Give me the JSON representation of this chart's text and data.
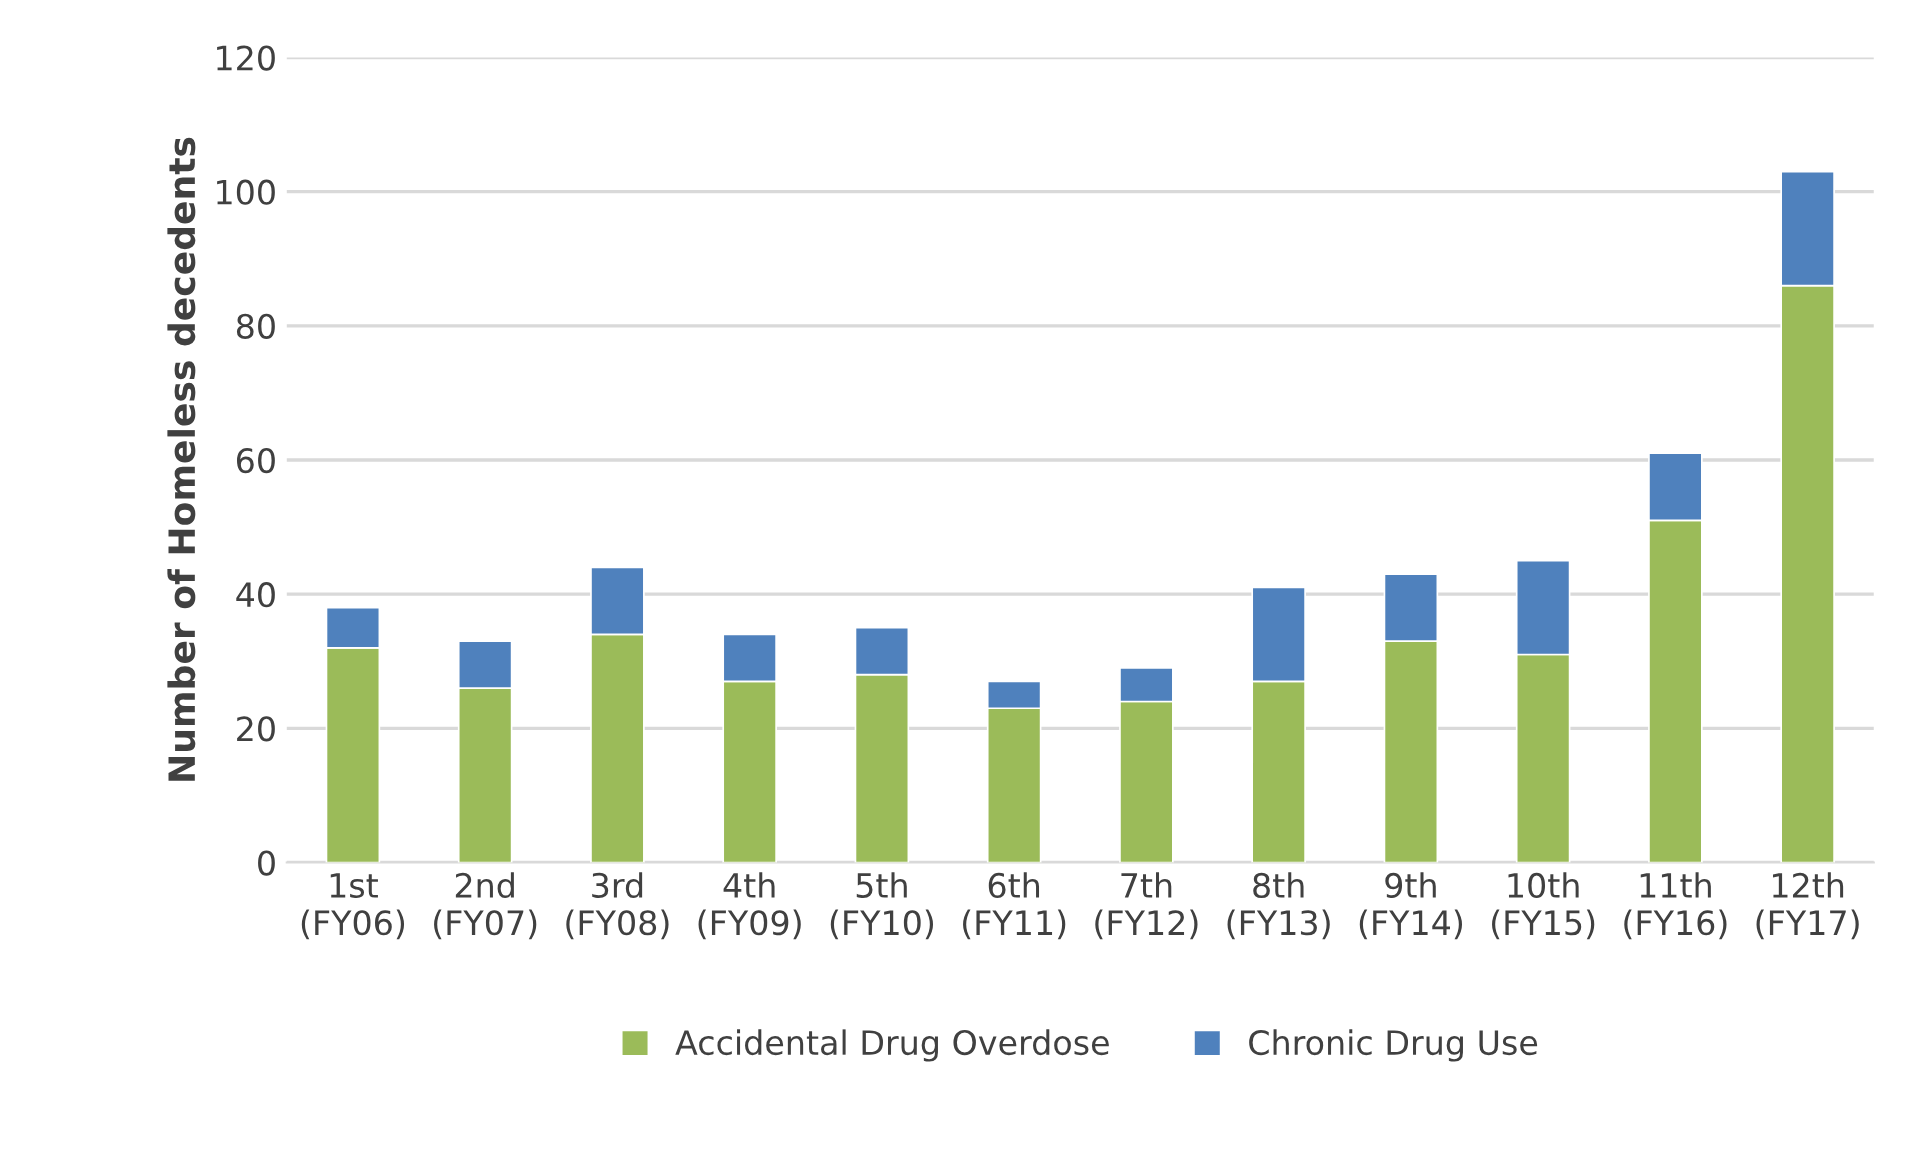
{
  "chart_data": {
    "type": "bar",
    "stacked": true,
    "ylabel": "Number of Homeless decedents",
    "categories": [
      "1st\n(FY06)",
      "2nd\n(FY07)",
      "3rd\n(FY08)",
      "4th\n(FY09)",
      "5th\n(FY10)",
      "6th\n(FY11)",
      "7th\n(FY12)",
      "8th\n(FY13)",
      "9th\n(FY14)",
      "10th\n(FY15)",
      "11th\n(FY16)",
      "12th\n(FY17)"
    ],
    "series": [
      {
        "name": "Accidental Drug Overdose",
        "color": "#9bbb59",
        "values": [
          32,
          26,
          34,
          27,
          28,
          23,
          24,
          27,
          33,
          31,
          51,
          86
        ]
      },
      {
        "name": "Chronic Drug Use",
        "color": "#4f81bd",
        "values": [
          6,
          7,
          10,
          7,
          7,
          4,
          5,
          14,
          10,
          14,
          10,
          17
        ]
      }
    ],
    "ylim": [
      0,
      120
    ],
    "yticks": [
      0,
      20,
      40,
      60,
      80,
      100,
      120
    ],
    "grid": "y",
    "legend": "bottom"
  }
}
